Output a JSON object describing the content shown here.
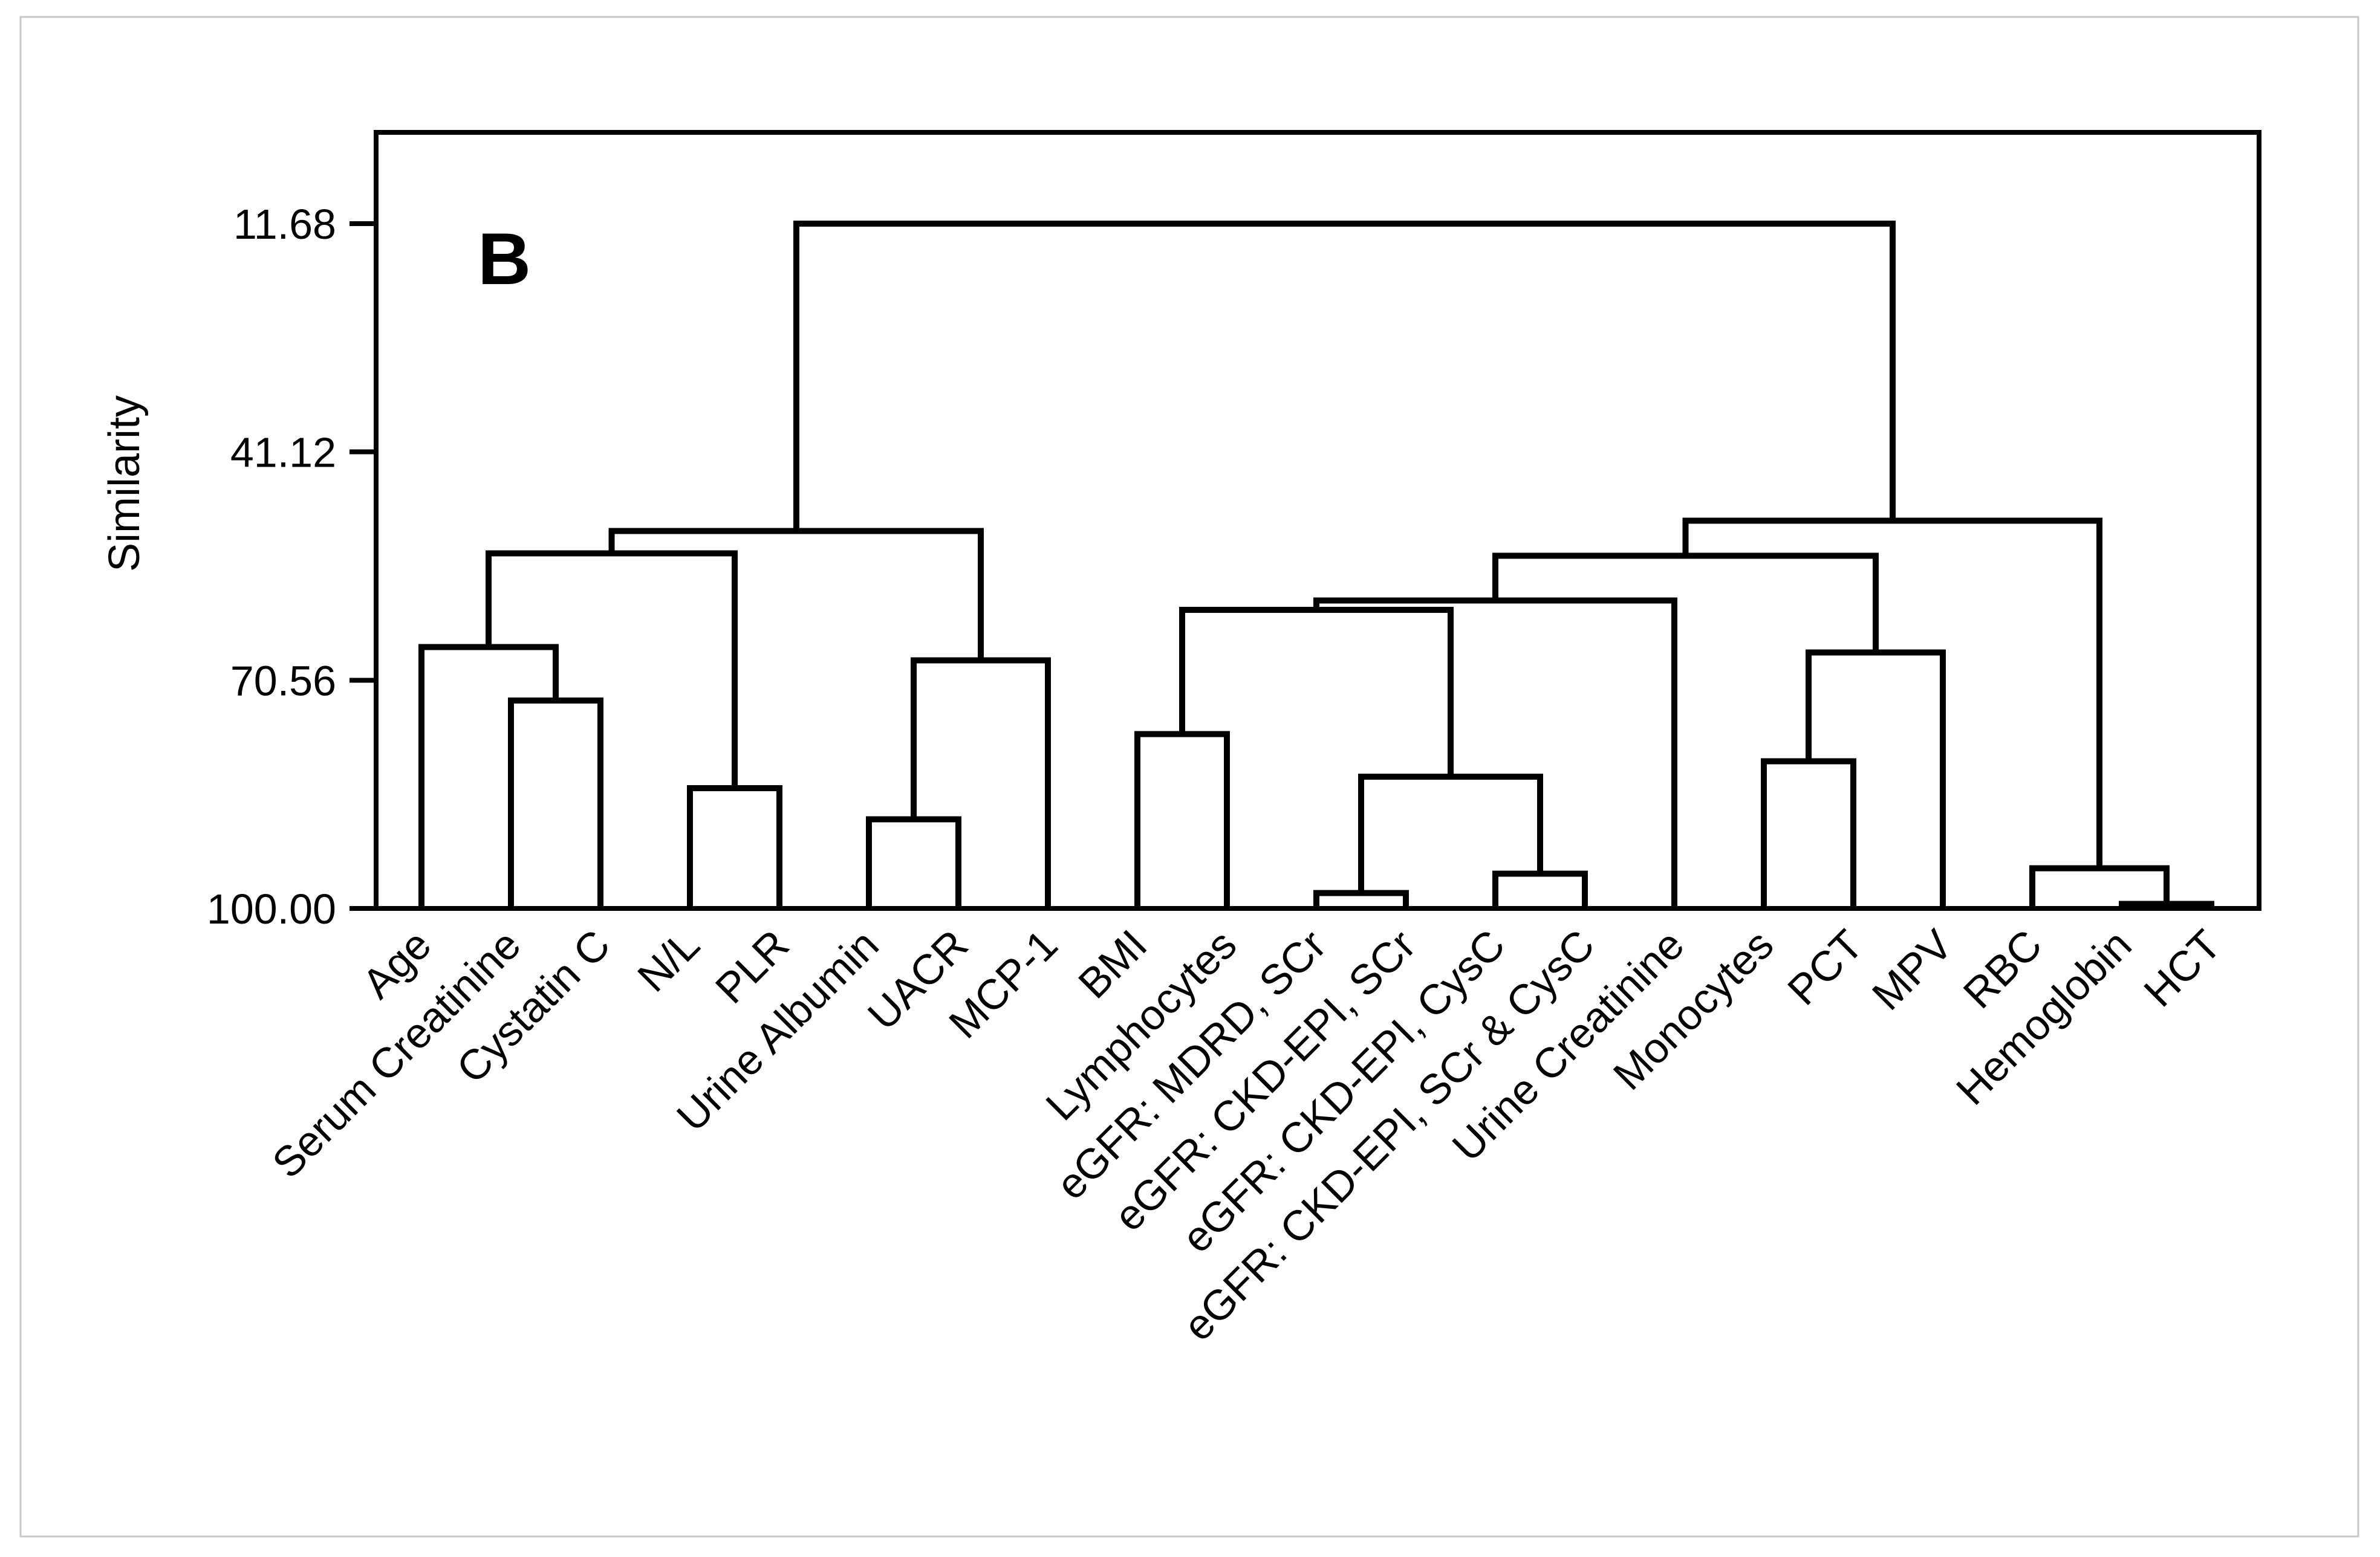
{
  "chart_data": {
    "type": "dendrogram",
    "panel_label": "B",
    "ylabel": "Similarity",
    "yticks": [
      11.68,
      41.12,
      70.56,
      100.0
    ],
    "ytick_labels": [
      "11.68",
      "41.12",
      "70.56",
      "100.00"
    ],
    "ylim_top": 11.68,
    "ylim_bottom": 100.0,
    "axis_note": "similarity axis inverted: 11.68 at top, 100.00 at baseline where leaves attach",
    "legend": "none",
    "grid": "off",
    "line_color": "#000000",
    "frame_color": "#c8c8c8",
    "background_color": "#ffffff",
    "leaves": [
      "Age",
      "Serum Creatinine",
      "Cystatin C",
      "N/L",
      "PLR",
      "Urine Albumin",
      "UACR",
      "MCP-1",
      "BMI",
      "Lymphocytes",
      "eGFR: MDRD, SCr",
      "eGFR: CKD-EPI, SCr",
      "eGFR: CKD-EPI, CysC",
      "eGFR: CKD-EPI, SCr & CysC",
      "Urine Creatinine",
      "Monocytes",
      "PCT",
      "MPV",
      "RBC",
      "Hemoglobin",
      "HCT"
    ],
    "linkage": {
      "sim": 11.68,
      "children": [
        {
          "sim": 51.3,
          "children": [
            {
              "sim": 54.2,
              "children": [
                {
                  "sim": 66.3,
                  "children": [
                    "Age",
                    {
                      "sim": 73.2,
                      "children": [
                        "Serum Creatinine",
                        "Cystatin C"
                      ]
                    }
                  ]
                },
                {
                  "sim": 84.5,
                  "children": [
                    "N/L",
                    "PLR"
                  ]
                }
              ]
            },
            {
              "sim": 68.0,
              "children": [
                {
                  "sim": 88.5,
                  "children": [
                    "Urine Albumin",
                    "UACR"
                  ]
                },
                "MCP-1"
              ]
            }
          ]
        },
        {
          "sim": 50.0,
          "children": [
            {
              "sim": 54.5,
              "children": [
                {
                  "sim": 60.3,
                  "children": [
                    {
                      "sim": 61.5,
                      "children": [
                        {
                          "sim": 77.5,
                          "children": [
                            "BMI",
                            "Lymphocytes"
                          ]
                        },
                        {
                          "sim": 83.0,
                          "children": [
                            {
                              "sim": 98.0,
                              "children": [
                                "eGFR: MDRD, SCr",
                                "eGFR: CKD-EPI, SCr"
                              ]
                            },
                            {
                              "sim": 95.5,
                              "children": [
                                "eGFR: CKD-EPI, CysC",
                                "eGFR: CKD-EPI, SCr & CysC"
                              ]
                            }
                          ]
                        }
                      ]
                    },
                    "Urine Creatinine"
                  ]
                },
                {
                  "sim": 67.0,
                  "children": [
                    {
                      "sim": 81.0,
                      "children": [
                        "Monocytes",
                        "PCT"
                      ]
                    },
                    "MPV"
                  ]
                }
              ]
            },
            {
              "sim": 94.8,
              "children": [
                "RBC",
                {
                  "sim": 99.4,
                  "children": [
                    "Hemoglobin",
                    "HCT"
                  ]
                }
              ]
            }
          ]
        }
      ]
    }
  }
}
